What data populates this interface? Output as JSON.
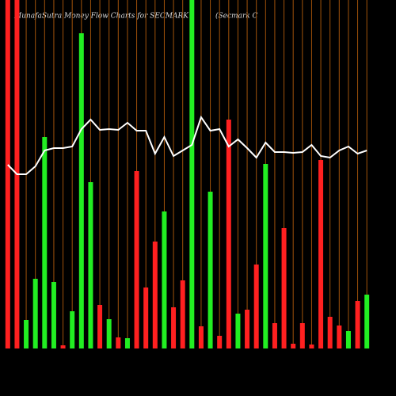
{
  "chart_data": {
    "type": "bar",
    "title": "MunafaSutra  Money Flow  Charts for SECMARK",
    "subtitle": "(Secmark C",
    "categories": [
      null,
      null,
      null,
      null,
      null,
      null,
      null,
      null,
      null,
      null,
      null,
      null,
      null,
      null,
      null,
      null,
      null,
      null,
      null,
      null,
      null,
      null,
      null,
      null,
      null,
      null,
      null,
      null,
      null,
      null,
      null,
      null,
      null,
      null,
      null,
      null,
      null,
      null,
      null,
      null
    ],
    "values": [
      440,
      440,
      36,
      88,
      267,
      84,
      4,
      47,
      398,
      210,
      55,
      37,
      14,
      13,
      224,
      77,
      135,
      173,
      52,
      86,
      440,
      28,
      198,
      16,
      289,
      44,
      49,
      106,
      233,
      32,
      152,
      6,
      32,
      5,
      238,
      40,
      29,
      22,
      60,
      68
    ],
    "colors": [
      "#ff2020",
      "#ff2020",
      "#22ee22",
      "#22ee22",
      "#22ee22",
      "#22ee22",
      "#ff2020",
      "#22ee22",
      "#22ee22",
      "#22ee22",
      "#ff2020",
      "#22ee22",
      "#ff2020",
      "#22ee22",
      "#ff2020",
      "#ff2020",
      "#ff2020",
      "#22ee22",
      "#ff2020",
      "#ff2020",
      "#22ee22",
      "#ff2020",
      "#22ee22",
      "#ff2020",
      "#ff2020",
      "#22ee22",
      "#ff2020",
      "#ff2020",
      "#22ee22",
      "#ff2020",
      "#ff2020",
      "#ff2020",
      "#ff2020",
      "#ff2020",
      "#ff2020",
      "#ff2020",
      "#ff2020",
      "#22ee22",
      "#ff2020",
      "#22ee22"
    ],
    "line_values": [
      232,
      220,
      220,
      230,
      250,
      253,
      253,
      255,
      277,
      289,
      276,
      277,
      276,
      285,
      275,
      275,
      246,
      267,
      243,
      250,
      257,
      292,
      275,
      277,
      255,
      264,
      253,
      241,
      260,
      248,
      248,
      247,
      248,
      257,
      243,
      241,
      250,
      255,
      246,
      250
    ],
    "line_color": "#ffffff",
    "ylim": [
      0,
      440
    ],
    "separator_color": "#a0520a"
  }
}
